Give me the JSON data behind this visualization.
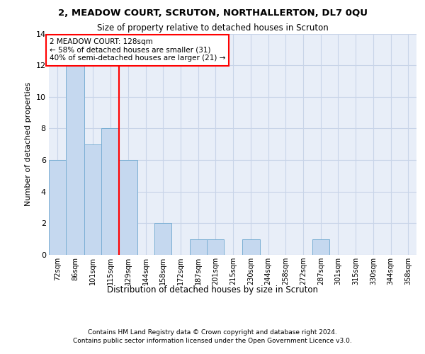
{
  "title1": "2, MEADOW COURT, SCRUTON, NORTHALLERTON, DL7 0QU",
  "title2": "Size of property relative to detached houses in Scruton",
  "xlabel": "Distribution of detached houses by size in Scruton",
  "ylabel": "Number of detached properties",
  "bin_labels": [
    "72sqm",
    "86sqm",
    "101sqm",
    "115sqm",
    "129sqm",
    "144sqm",
    "158sqm",
    "172sqm",
    "187sqm",
    "201sqm",
    "215sqm",
    "230sqm",
    "244sqm",
    "258sqm",
    "272sqm",
    "287sqm",
    "301sqm",
    "315sqm",
    "330sqm",
    "344sqm",
    "358sqm"
  ],
  "counts": [
    6,
    12,
    7,
    8,
    6,
    0,
    2,
    0,
    1,
    1,
    0,
    1,
    0,
    0,
    0,
    1,
    0,
    0,
    0,
    0
  ],
  "bin_edges": [
    72,
    86,
    101,
    115,
    129,
    144,
    158,
    172,
    187,
    201,
    215,
    230,
    244,
    258,
    272,
    287,
    301,
    315,
    330,
    344,
    358
  ],
  "bar_color": "#c5d8ef",
  "bar_edge_color": "#7bafd4",
  "property_line_x": 129,
  "annotation_text": "2 MEADOW COURT: 128sqm\n← 58% of detached houses are smaller (31)\n40% of semi-detached houses are larger (21) →",
  "annotation_box_color": "white",
  "annotation_box_edge_color": "red",
  "vline_color": "red",
  "ylim": [
    0,
    14
  ],
  "yticks": [
    0,
    2,
    4,
    6,
    8,
    10,
    12,
    14
  ],
  "grid_color": "#c8d4e8",
  "background_color": "#e8eef8",
  "footer1": "Contains HM Land Registry data © Crown copyright and database right 2024.",
  "footer2": "Contains public sector information licensed under the Open Government Licence v3.0."
}
